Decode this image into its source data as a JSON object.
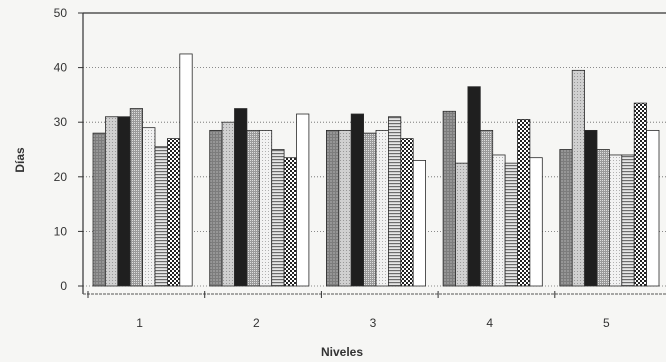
{
  "chart_data": {
    "type": "bar",
    "title": "",
    "xlabel": "Niveles",
    "ylabel": "Días",
    "categories": [
      "1",
      "2",
      "3",
      "4",
      "5"
    ],
    "ylim": [
      0,
      50
    ],
    "yticks": [
      0,
      10,
      20,
      30,
      40,
      50
    ],
    "grid": true,
    "legend": "none",
    "series": [
      {
        "values": [
          28,
          28.5,
          28.5,
          32,
          25
        ]
      },
      {
        "values": [
          31,
          30,
          28.5,
          22.5,
          39.5
        ]
      },
      {
        "values": [
          31,
          32.5,
          31.5,
          36.5,
          28.5
        ]
      },
      {
        "values": [
          32.5,
          28.5,
          28,
          28.5,
          25
        ]
      },
      {
        "values": [
          29,
          28.5,
          28.5,
          24,
          24
        ]
      },
      {
        "values": [
          25.5,
          25,
          31,
          22.5,
          24
        ]
      },
      {
        "values": [
          27,
          23.5,
          27,
          30.5,
          33.5
        ]
      },
      {
        "values": [
          42.5,
          31.5,
          23,
          23.5,
          28.5
        ]
      }
    ]
  }
}
